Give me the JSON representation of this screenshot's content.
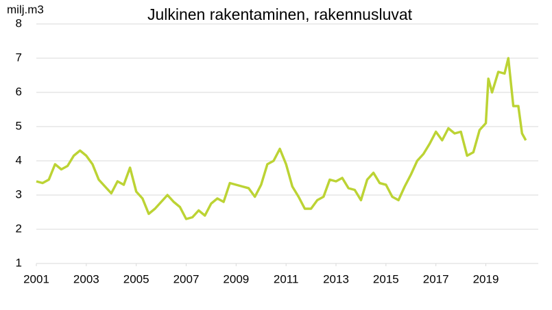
{
  "chart_data": {
    "type": "line",
    "title": "Julkinen rakentaminen, rakennusluvat",
    "y_label": "milj.m3",
    "x": [
      2001.0,
      2001.25,
      2001.5,
      2001.75,
      2002.0,
      2002.25,
      2002.5,
      2002.75,
      2003.0,
      2003.25,
      2003.5,
      2003.75,
      2004.0,
      2004.25,
      2004.5,
      2004.75,
      2005.0,
      2005.25,
      2005.5,
      2005.75,
      2006.0,
      2006.25,
      2006.5,
      2006.75,
      2007.0,
      2007.25,
      2007.5,
      2007.75,
      2008.0,
      2008.25,
      2008.5,
      2008.75,
      2009.0,
      2009.25,
      2009.5,
      2009.75,
      2010.0,
      2010.25,
      2010.5,
      2010.75,
      2011.0,
      2011.25,
      2011.5,
      2011.75,
      2012.0,
      2012.25,
      2012.5,
      2012.75,
      2013.0,
      2013.25,
      2013.5,
      2013.75,
      2014.0,
      2014.25,
      2014.5,
      2014.75,
      2015.0,
      2015.25,
      2015.5,
      2015.75,
      2016.0,
      2016.25,
      2016.5,
      2016.75,
      2017.0,
      2017.25,
      2017.5,
      2017.75,
      2018.0,
      2018.25,
      2018.5,
      2018.75,
      2019.0,
      2019.1,
      2019.25,
      2019.5,
      2019.75,
      2019.9,
      2020.1,
      2020.3,
      2020.45,
      2020.6
    ],
    "series": [
      {
        "name": "Julkinen rakentaminen",
        "color": "#bcd334",
        "values": [
          3.4,
          3.35,
          3.45,
          3.9,
          3.75,
          3.85,
          4.15,
          4.3,
          4.15,
          3.9,
          3.45,
          3.25,
          3.05,
          3.4,
          3.3,
          3.8,
          3.1,
          2.9,
          2.45,
          2.6,
          2.8,
          3.0,
          2.8,
          2.65,
          2.3,
          2.35,
          2.55,
          2.4,
          2.75,
          2.9,
          2.8,
          3.35,
          3.3,
          3.25,
          3.2,
          2.95,
          3.3,
          3.9,
          4.0,
          4.35,
          3.9,
          3.25,
          2.95,
          2.6,
          2.6,
          2.85,
          2.95,
          3.45,
          3.4,
          3.5,
          3.2,
          3.15,
          2.85,
          3.45,
          3.65,
          3.35,
          3.3,
          2.95,
          2.85,
          3.25,
          3.6,
          4.0,
          4.2,
          4.5,
          4.85,
          4.6,
          4.95,
          4.8,
          4.85,
          4.15,
          4.25,
          4.9,
          5.1,
          6.4,
          6.0,
          6.6,
          6.55,
          7.0,
          5.6,
          5.6,
          4.8,
          4.6
        ]
      }
    ],
    "xlim": [
      2001,
      2021.1
    ],
    "xticks": [
      2001,
      2003,
      2005,
      2007,
      2009,
      2011,
      2013,
      2015,
      2017,
      2019
    ],
    "ylim": [
      1,
      8
    ],
    "yticks": [
      1,
      2,
      3,
      4,
      5,
      6,
      7,
      8
    ],
    "grid": true
  }
}
